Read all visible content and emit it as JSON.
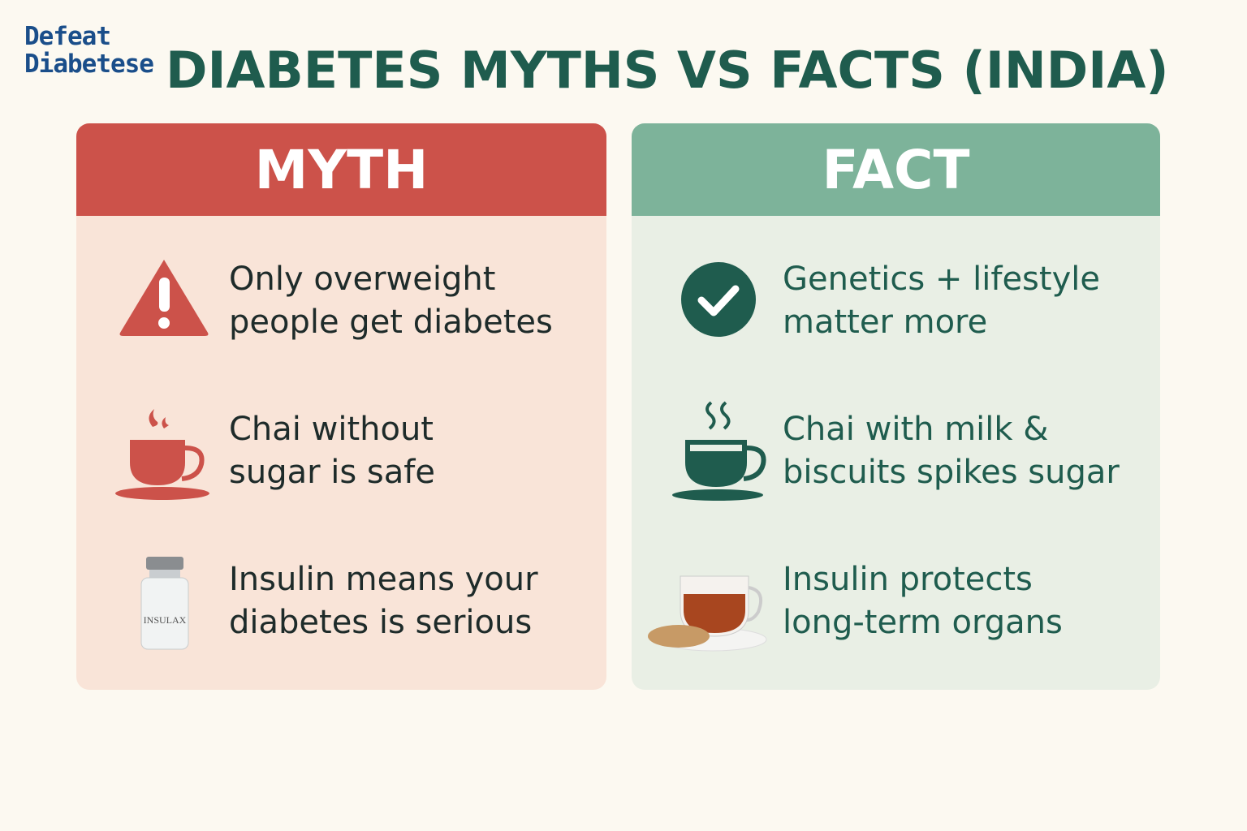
{
  "logo": {
    "lines": [
      "Defeat",
      "Diabetese"
    ]
  },
  "title": "DIABETES MYTHS VS FACTS (INDIA)",
  "myth": {
    "header": "MYTH",
    "items": [
      {
        "lines": [
          "Only overweight",
          "people get diabetes"
        ]
      },
      {
        "lines": [
          "Chai without",
          "sugar is safe"
        ]
      },
      {
        "lines": [
          "Insulin means your",
          "diabetes is serious"
        ],
        "icon_label": "INSULAX"
      }
    ]
  },
  "fact": {
    "header": "FACT",
    "items": [
      {
        "lines": [
          "Genetics + lifestyle",
          "matter more"
        ]
      },
      {
        "lines": [
          "Chai with milk &",
          "biscuits spikes sugar"
        ]
      },
      {
        "lines": [
          "Insulin protects",
          "long-term organs"
        ]
      }
    ]
  }
}
